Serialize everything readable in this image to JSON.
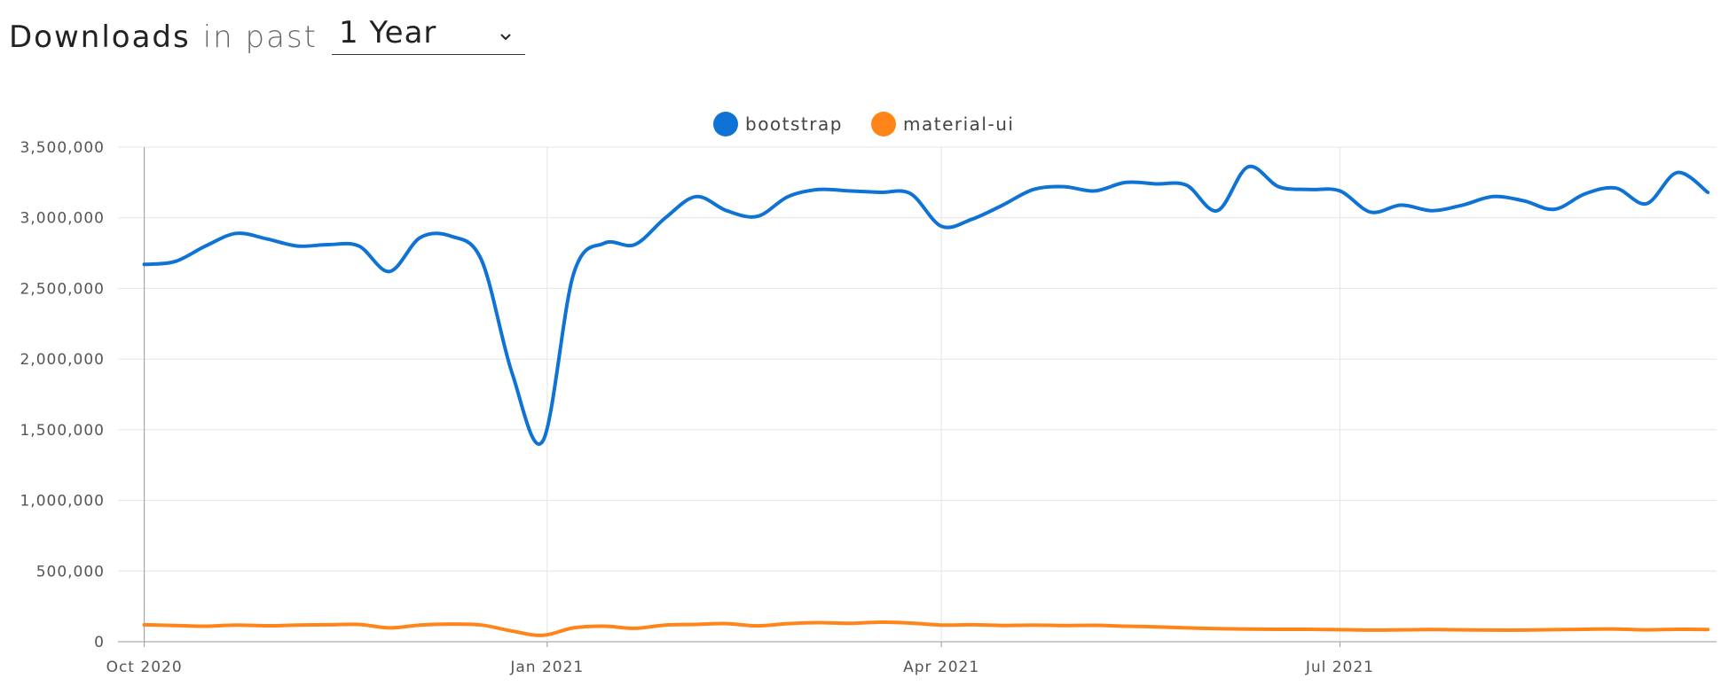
{
  "header": {
    "title": "Downloads",
    "subtitle": "in past",
    "period": "1 Year"
  },
  "chart_data": {
    "type": "line",
    "title": "",
    "xlabel": "",
    "ylabel": "",
    "x": [
      "2020-10-01",
      "2020-10-08",
      "2020-10-15",
      "2020-10-22",
      "2020-10-29",
      "2020-11-05",
      "2020-11-12",
      "2020-11-19",
      "2020-11-26",
      "2020-12-03",
      "2020-12-10",
      "2020-12-17",
      "2020-12-24",
      "2020-12-31",
      "2021-01-07",
      "2021-01-14",
      "2021-01-21",
      "2021-01-28",
      "2021-02-04",
      "2021-02-11",
      "2021-02-18",
      "2021-02-25",
      "2021-03-04",
      "2021-03-11",
      "2021-03-18",
      "2021-03-25",
      "2021-04-01",
      "2021-04-08",
      "2021-04-15",
      "2021-04-22",
      "2021-04-29",
      "2021-05-06",
      "2021-05-13",
      "2021-05-20",
      "2021-05-27",
      "2021-06-03",
      "2021-06-10",
      "2021-06-17",
      "2021-06-24",
      "2021-07-01",
      "2021-07-08",
      "2021-07-15",
      "2021-07-22",
      "2021-07-29",
      "2021-08-05",
      "2021-08-12",
      "2021-08-19",
      "2021-08-26",
      "2021-09-02",
      "2021-09-09",
      "2021-09-16",
      "2021-09-23"
    ],
    "series": [
      {
        "name": "bootstrap",
        "color": "#0f73d6",
        "values": [
          2670000,
          2690000,
          2800000,
          2890000,
          2850000,
          2800000,
          2810000,
          2800000,
          2620000,
          2860000,
          2870000,
          2700000,
          1900000,
          1420000,
          2600000,
          2820000,
          2810000,
          3000000,
          3150000,
          3050000,
          3010000,
          3150000,
          3200000,
          3190000,
          3180000,
          3170000,
          2940000,
          2990000,
          3090000,
          3200000,
          3220000,
          3190000,
          3250000,
          3240000,
          3230000,
          3050000,
          3360000,
          3220000,
          3200000,
          3190000,
          3040000,
          3090000,
          3050000,
          3090000,
          3150000,
          3120000,
          3060000,
          3170000,
          3210000,
          3100000,
          3320000,
          3180000
        ]
      },
      {
        "name": "material-ui",
        "color": "#ff851b",
        "values": [
          120000,
          115000,
          110000,
          118000,
          113000,
          118000,
          120000,
          122000,
          98000,
          118000,
          125000,
          118000,
          75000,
          45000,
          98000,
          110000,
          95000,
          118000,
          122000,
          128000,
          112000,
          128000,
          135000,
          130000,
          138000,
          132000,
          118000,
          120000,
          115000,
          118000,
          115000,
          116000,
          110000,
          105000,
          98000,
          92000,
          90000,
          88000,
          88000,
          85000,
          82000,
          84000,
          86000,
          84000,
          82000,
          82000,
          85000,
          88000,
          90000,
          84000,
          88000,
          86000
        ]
      }
    ],
    "ylim": [
      0,
      3500000
    ],
    "yticks": [
      0,
      500000,
      1000000,
      1500000,
      2000000,
      2500000,
      3000000,
      3500000
    ],
    "ytick_labels": [
      "0",
      "500,000",
      "1,000,000",
      "1,500,000",
      "2,000,000",
      "2,500,000",
      "3,000,000",
      "3,500,000"
    ],
    "xticks": [
      {
        "date": "2020-10-01",
        "label": "Oct 2020"
      },
      {
        "date": "2021-01-01",
        "label": "Jan 2021"
      },
      {
        "date": "2021-04-01",
        "label": "Apr 2021"
      },
      {
        "date": "2021-07-01",
        "label": "Jul 2021"
      }
    ],
    "legend_position": "top-center",
    "grid": true
  }
}
